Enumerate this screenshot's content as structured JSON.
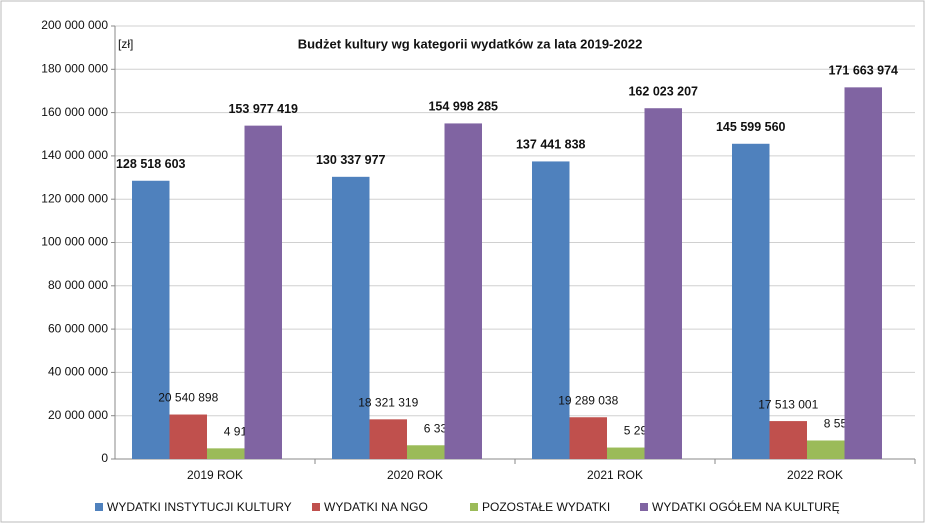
{
  "chart_data": {
    "type": "bar",
    "title": "Budżet kultury wg kategorii wydatków za lata 2019-2022",
    "unit_label": "[zł]",
    "categories": [
      "2019 ROK",
      "2020 ROK",
      "2021 ROK",
      "2022 ROK"
    ],
    "series": [
      {
        "name": "WYDATKI INSTYTUCJI KULTURY",
        "color": "#4f81bd",
        "values": [
          128518603,
          130337977,
          137441838,
          145599560
        ],
        "value_labels": [
          "128 518 603",
          "130 337 977",
          "137 441 838",
          "145 599 560"
        ]
      },
      {
        "name": "WYDATKI NA NGO",
        "color": "#c0504d",
        "values": [
          20540898,
          18321319,
          19289038,
          17513001
        ],
        "value_labels": [
          "20 540 898",
          "18 321 319",
          "19 289 038",
          "17 513 001"
        ]
      },
      {
        "name": "POZOSTAŁE WYDATKI",
        "color": "#9bbb59",
        "values": [
          4917918,
          6338988,
          5292330,
          8551413
        ],
        "value_labels": [
          "4 917 918",
          "6 338 988",
          "5 292 330",
          "8 551 413"
        ]
      },
      {
        "name": "WYDATKI OGÓŁEM NA KULTURĘ",
        "color": "#8064a2",
        "values": [
          153977419,
          154998285,
          162023207,
          171663974
        ],
        "value_labels": [
          "153 977 419",
          "154 998 285",
          "162 023 207",
          "171 663 974"
        ]
      }
    ],
    "ylim": [
      0,
      200000000
    ],
    "yticks": [
      {
        "value": 0,
        "label": "0"
      },
      {
        "value": 20000000,
        "label": "20 000 000"
      },
      {
        "value": 40000000,
        "label": "40 000 000"
      },
      {
        "value": 60000000,
        "label": "60 000 000"
      },
      {
        "value": 80000000,
        "label": "80 000 000"
      },
      {
        "value": 100000000,
        "label": "100 000 000"
      },
      {
        "value": 120000000,
        "label": "120 000 000"
      },
      {
        "value": 140000000,
        "label": "140 000 000"
      },
      {
        "value": 160000000,
        "label": "160 000 000"
      },
      {
        "value": 180000000,
        "label": "180 000 000"
      },
      {
        "value": 200000000,
        "label": "200 000 000"
      }
    ],
    "grid": true,
    "legend": "bottom"
  }
}
